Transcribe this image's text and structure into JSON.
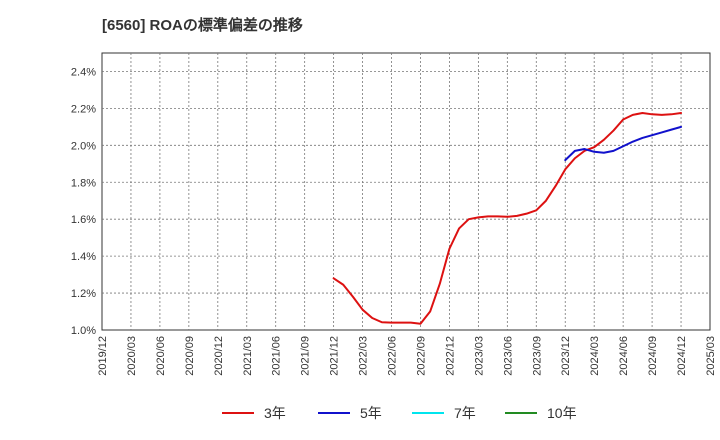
{
  "chart_data": {
    "type": "line",
    "title": "[6560]  ROAの標準偏差の推移",
    "xlabel": "",
    "ylabel": "",
    "ylim": [
      1.0,
      2.5
    ],
    "y_ticks": [
      1.0,
      1.2,
      1.4,
      1.6,
      1.8,
      2.0,
      2.2,
      2.4
    ],
    "y_tick_labels": [
      "1.0%",
      "1.2%",
      "1.4%",
      "1.6%",
      "1.8%",
      "2.0%",
      "2.2%",
      "2.4%"
    ],
    "x_tick_labels": [
      "2019/12",
      "2020/03",
      "2020/06",
      "2020/09",
      "2020/12",
      "2021/03",
      "2021/06",
      "2021/09",
      "2021/12",
      "2022/03",
      "2022/06",
      "2022/09",
      "2022/12",
      "2023/03",
      "2023/06",
      "2023/09",
      "2023/12",
      "2024/03",
      "2024/06",
      "2024/09",
      "2024/12",
      "2025/03"
    ],
    "grid": true,
    "legend_position": "bottom",
    "series": [
      {
        "name": "3年",
        "color": "#dd1111",
        "x": [
          "2021/12",
          "2022/01",
          "2022/02",
          "2022/03",
          "2022/04",
          "2022/05",
          "2022/06",
          "2022/07",
          "2022/08",
          "2022/09",
          "2022/10",
          "2022/11",
          "2022/12",
          "2023/01",
          "2023/02",
          "2023/03",
          "2023/04",
          "2023/05",
          "2023/06",
          "2023/07",
          "2023/08",
          "2023/09",
          "2023/10",
          "2023/11",
          "2023/12",
          "2024/01",
          "2024/02",
          "2024/03",
          "2024/04",
          "2024/05",
          "2024/06",
          "2024/07",
          "2024/08",
          "2024/09",
          "2024/10",
          "2024/11",
          "2024/12"
        ],
        "values": [
          1.28,
          1.245,
          1.18,
          1.11,
          1.065,
          1.042,
          1.04,
          1.04,
          1.04,
          1.034,
          1.1,
          1.25,
          1.44,
          1.55,
          1.6,
          1.61,
          1.615,
          1.615,
          1.613,
          1.618,
          1.63,
          1.648,
          1.7,
          1.78,
          1.87,
          1.93,
          1.97,
          1.99,
          2.03,
          2.08,
          2.14,
          2.165,
          2.175,
          2.168,
          2.165,
          2.168,
          2.175
        ]
      },
      {
        "name": "5年",
        "color": "#1111cc",
        "x": [
          "2023/12",
          "2024/01",
          "2024/02",
          "2024/03",
          "2024/04",
          "2024/05",
          "2024/06",
          "2024/07",
          "2024/08",
          "2024/09",
          "2024/10",
          "2024/11",
          "2024/12"
        ],
        "values": [
          1.92,
          1.97,
          1.98,
          1.965,
          1.96,
          1.97,
          1.995,
          2.02,
          2.04,
          2.055,
          2.07,
          2.085,
          2.1
        ]
      },
      {
        "name": "7年",
        "color": "#00e5ee",
        "x": [],
        "values": []
      },
      {
        "name": "10年",
        "color": "#228b22",
        "x": [],
        "values": []
      }
    ]
  }
}
